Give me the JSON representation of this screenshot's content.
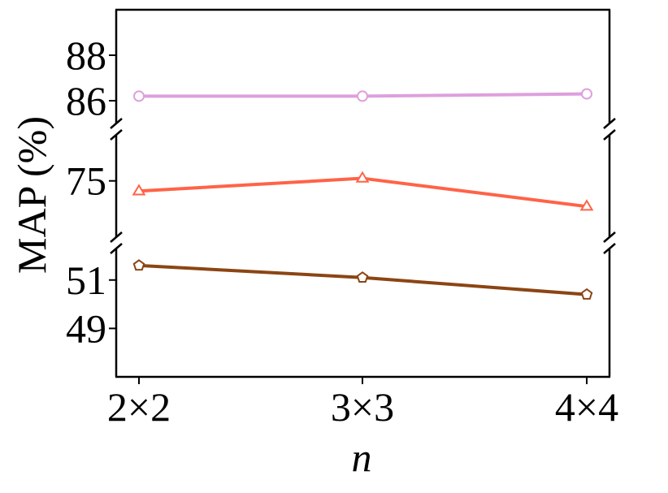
{
  "chart_data": {
    "type": "line",
    "xlabel": "n",
    "ylabel": "MAP (%)",
    "categories": [
      "2×2",
      "3×3",
      "4×4"
    ],
    "broken_y_axis": true,
    "grid": false,
    "legend": "none",
    "panels": [
      {
        "ylim": [
          85,
          90
        ],
        "ticks": [
          86,
          88
        ],
        "tick_labels": [
          "86",
          "88"
        ]
      },
      {
        "ylim": [
          72.8,
          76.8
        ],
        "ticks": [
          75
        ],
        "tick_labels": [
          "75"
        ]
      },
      {
        "ylim": [
          47,
          52.3
        ],
        "ticks": [
          49,
          51
        ],
        "tick_labels": [
          "49",
          "51"
        ]
      }
    ],
    "series": [
      {
        "panel": 0,
        "values": [
          86.2,
          86.2,
          86.3
        ],
        "color": "#dda0dd",
        "marker": "circle"
      },
      {
        "panel": 1,
        "values": [
          74.6,
          75.1,
          74.0
        ],
        "color": "#ff6347",
        "marker": "triangle"
      },
      {
        "panel": 2,
        "values": [
          51.6,
          51.1,
          50.4
        ],
        "color": "#8b4513",
        "marker": "pentagon"
      }
    ]
  }
}
